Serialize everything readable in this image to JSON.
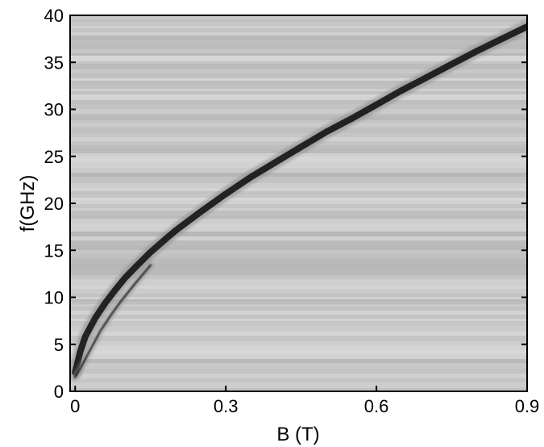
{
  "chart_data": {
    "type": "heatmap",
    "title": "",
    "xlabel": "B (T)",
    "ylabel": "f(GHz)",
    "xlim": [
      -0.01,
      0.9
    ],
    "ylim": [
      0,
      40
    ],
    "xticks": [
      0,
      0.3,
      0.6,
      0.9
    ],
    "xtick_labels": [
      "0",
      "0.3",
      "0.6",
      "0.9"
    ],
    "yticks": [
      0,
      5,
      10,
      15,
      20,
      25,
      30,
      35,
      40
    ],
    "ytick_labels": [
      "0",
      "5",
      "10",
      "15",
      "20",
      "25",
      "30",
      "35",
      "40"
    ],
    "grid": false,
    "colormap": "grayscale",
    "background_color": "#c4c4c4",
    "resonance_color": "#141414",
    "series": [
      {
        "x": [
          0.0,
          0.01,
          0.02,
          0.04,
          0.06,
          0.08,
          0.1,
          0.12,
          0.15,
          0.18,
          0.2,
          0.25,
          0.3,
          0.35,
          0.4,
          0.45,
          0.5,
          0.55,
          0.6,
          0.65,
          0.7,
          0.75,
          0.8,
          0.85,
          0.9
        ],
        "y": [
          2.0,
          4.2,
          5.8,
          7.8,
          9.4,
          10.8,
          12.1,
          13.2,
          14.8,
          16.2,
          17.1,
          19.1,
          21.0,
          22.8,
          24.4,
          26.0,
          27.6,
          29.0,
          30.5,
          32.0,
          33.4,
          34.8,
          36.2,
          37.5,
          38.8
        ]
      },
      {
        "x": [
          0.0,
          0.01,
          0.02,
          0.03,
          0.04,
          0.05,
          0.07,
          0.09,
          0.12,
          0.15
        ],
        "y": [
          1.5,
          2.4,
          3.4,
          4.4,
          5.4,
          6.4,
          8.0,
          9.5,
          11.5,
          13.4
        ]
      }
    ]
  }
}
